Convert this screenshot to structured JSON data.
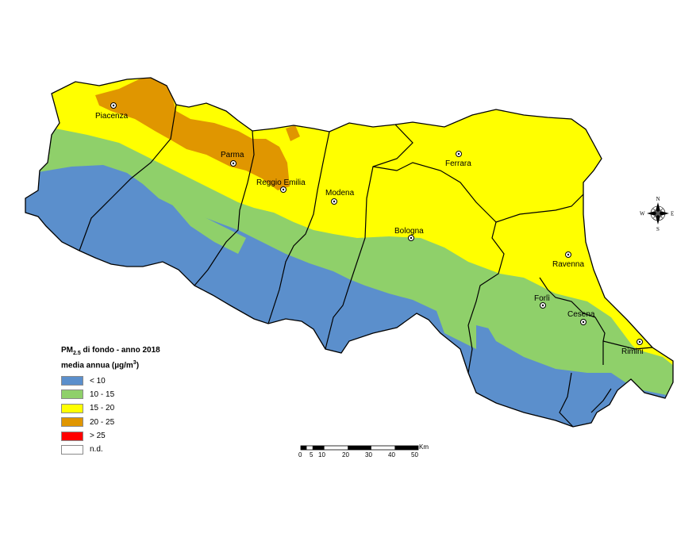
{
  "colors": {
    "lt10": "#5b8fcc",
    "c10_15": "#8fd06a",
    "c15_20": "#ffff00",
    "c20_25": "#e09600",
    "gt25": "#ff0000",
    "nd": "#ffffff",
    "boundary": "#000000"
  },
  "legend": {
    "title_prefix": "PM",
    "title_subscript": "2.5",
    "title_suffix": " di fondo - anno 2018",
    "subtitle_prefix": "media annua (µg/m",
    "subtitle_sup": "3",
    "subtitle_suffix": ")",
    "items": [
      {
        "label": "< 10",
        "color": "#5b8fcc"
      },
      {
        "label": "10 - 15",
        "color": "#8fd06a"
      },
      {
        "label": "15 - 20",
        "color": "#ffff00"
      },
      {
        "label": "20 - 25",
        "color": "#e09600"
      },
      {
        "label": "> 25",
        "color": "#ff0000"
      },
      {
        "label": "n.d.",
        "color": "#ffffff"
      }
    ]
  },
  "cities": {
    "piacenza": "Piacenza",
    "parma": "Parma",
    "reggio": "Reggio Emilia",
    "modena": "Modena",
    "ferrara": "Ferrara",
    "bologna": "Bologna",
    "ravenna": "Ravenna",
    "forli": "Forlì",
    "cesena": "Cesena",
    "rimini": "Rimini"
  },
  "scale_bar": {
    "unit": "Km",
    "ticks": [
      "0",
      "5",
      "10",
      "20",
      "30",
      "40",
      "50"
    ]
  },
  "compass": {
    "n": "N",
    "s": "S",
    "e": "E",
    "w": "W"
  }
}
